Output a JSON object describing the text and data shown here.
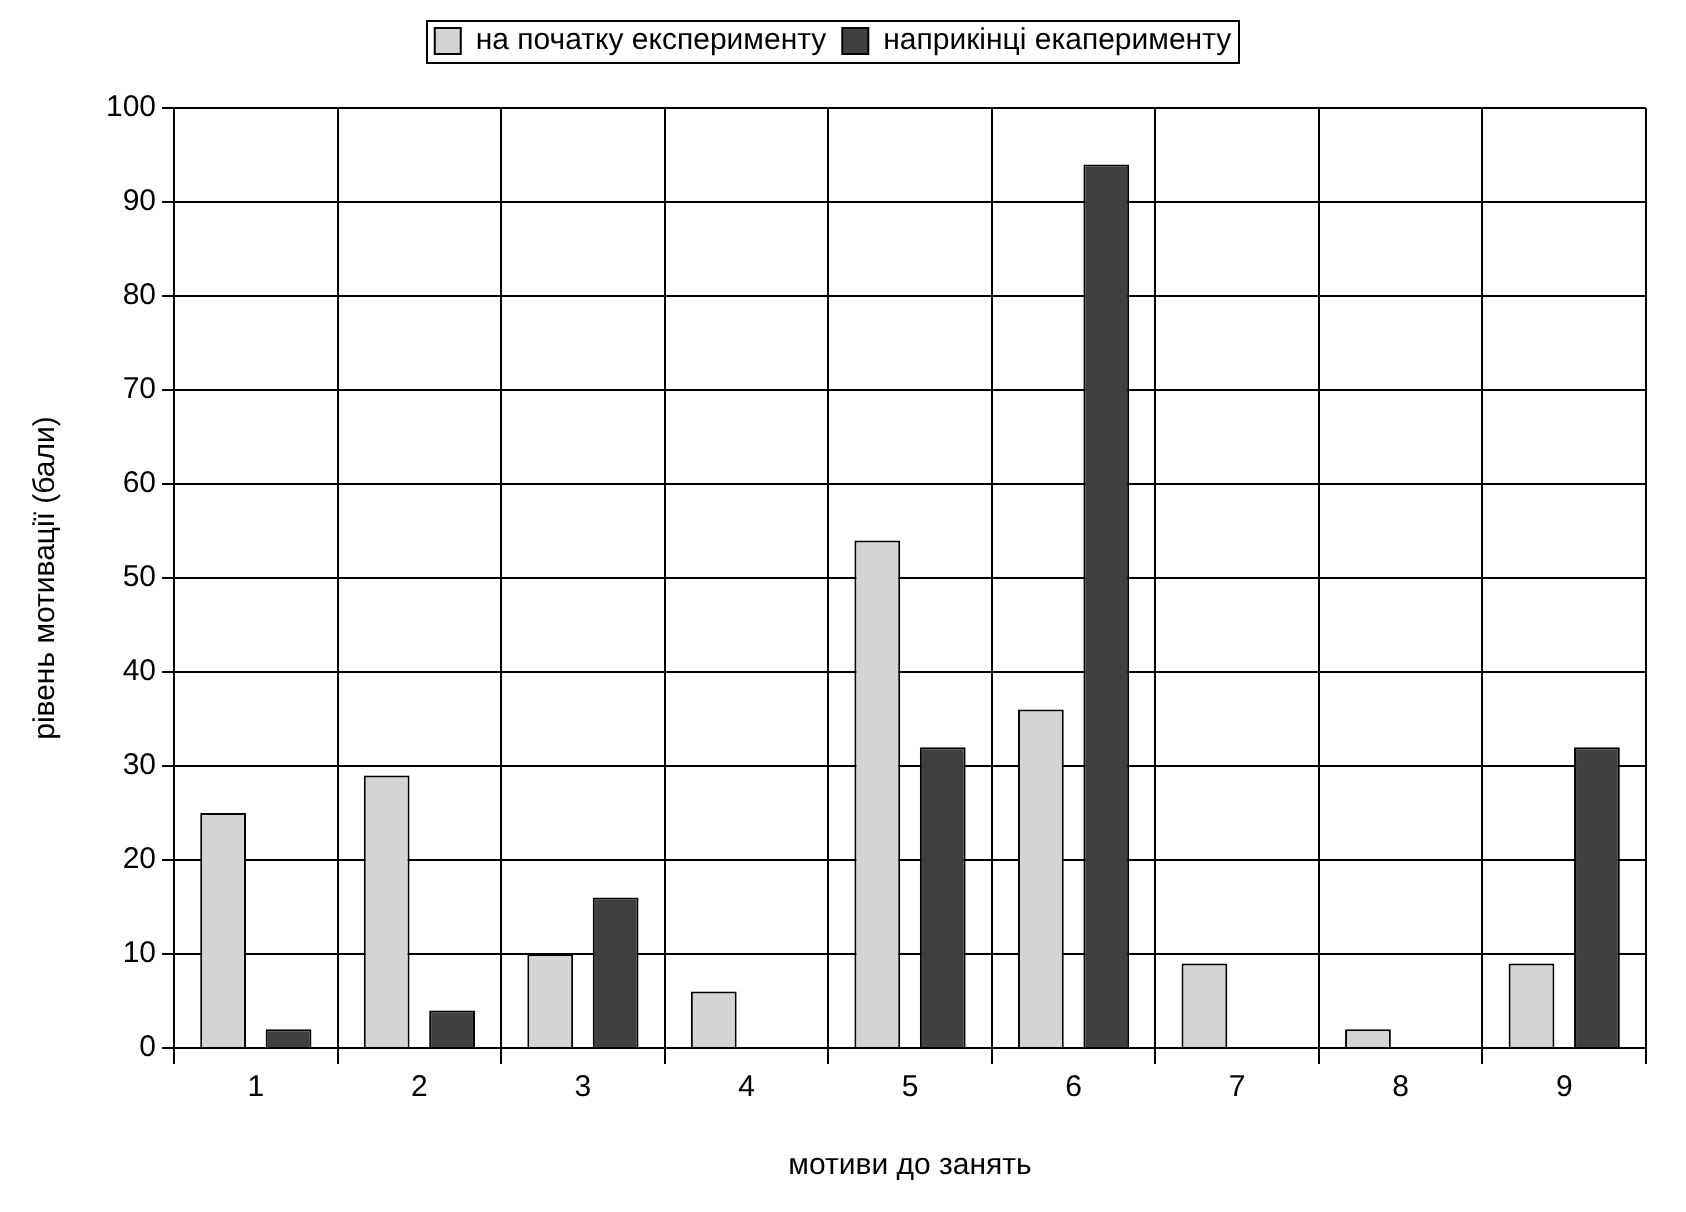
{
  "chart_data": {
    "type": "bar",
    "xlabel": "мотиви до занять",
    "ylabel": "рівень мотивації (бали)",
    "categories": [
      "1",
      "2",
      "3",
      "4",
      "5",
      "6",
      "7",
      "8",
      "9"
    ],
    "series": [
      {
        "name": "на початку експерименту",
        "color": "#d4d4d4",
        "values": [
          25,
          29,
          10,
          6,
          54,
          36,
          9,
          2,
          9
        ]
      },
      {
        "name": "наприкінці екаперименту",
        "color": "#404040",
        "values": [
          2,
          4,
          16,
          0,
          32,
          94,
          0,
          0,
          32
        ]
      }
    ],
    "ylim": [
      0,
      100
    ],
    "yticks": [
      0,
      10,
      20,
      30,
      40,
      50,
      60,
      70,
      80,
      90,
      100
    ],
    "grid": true,
    "legend": "top"
  }
}
